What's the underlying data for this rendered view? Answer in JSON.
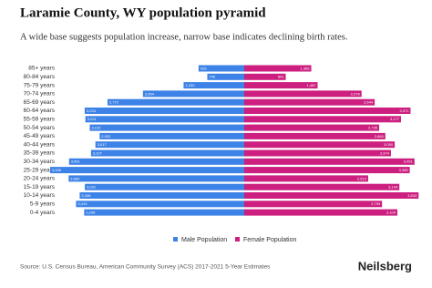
{
  "chart_data": {
    "type": "population-pyramid",
    "title": "Laramie County, WY population pyramid",
    "subtitle": "A wide base suggests population increase, narrow base indicates declining birth rates.",
    "categories": [
      "85+ years",
      "80-84 years",
      "75-79 years",
      "70-74 years",
      "65-69 years",
      "60-64 years",
      "55-59 years",
      "50-54 years",
      "45-49 years",
      "40-44 years",
      "35-39 years",
      "30-34 years",
      "25-29 years",
      "20-24 years",
      "15-19 years",
      "10-14 years",
      "5-9 years",
      "0-4 years"
    ],
    "series": [
      {
        "name": "Male Population",
        "color": "#3d82e6",
        "values": [
          926,
          749,
          1230,
          2054,
          2772,
          3234,
          3221,
          3132,
          2932,
          3017,
          3107,
          3551,
          3935,
          3560,
          3231,
          3336,
          3410,
          3245
        ],
        "value_labels": [
          "926",
          "749",
          "1,230",
          "2,054",
          "2,772",
          "3,234",
          "3,221",
          "3,132",
          "2,932",
          "3,017",
          "3,107",
          "3,551",
          "3,935",
          "3,560",
          "3,231",
          "3,336",
          "3,410",
          "3,245"
        ]
      },
      {
        "name": "Female Population",
        "color": "#cc1f7f",
        "values": [
          1358,
          841,
          1487,
          2378,
          2644,
          3371,
          3177,
          2735,
          2860,
          3050,
          2974,
          3451,
          3355,
          2512,
          3144,
          3533,
          2793,
          3104
        ],
        "value_labels": [
          "1,358",
          "841",
          "1,487",
          "2,378",
          "2,644",
          "3,371",
          "3,177",
          "2,735",
          "2,860",
          "3,050",
          "2,974",
          "3,451",
          "3,355",
          "2,512",
          "3,144",
          "3,533",
          "2,793",
          "3,104"
        ]
      }
    ],
    "source": "Source: U.S. Census Bureau, American Community Survey (ACS) 2017-2021 5-Year Estimates",
    "brand": "Neilsberg"
  }
}
